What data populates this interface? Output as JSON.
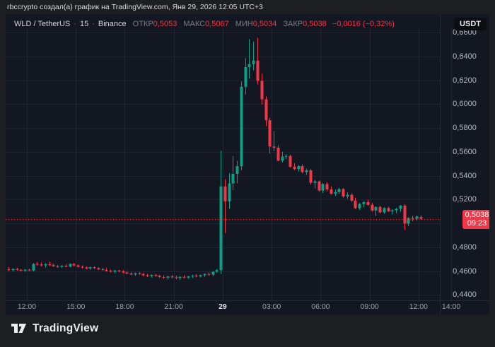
{
  "page": {
    "attribution": "rbccrypto создал(а) график на TradingView.com, Янв 29, 2026 12:05 UTC+3"
  },
  "chart": {
    "legend": {
      "symbol": "WLD / TetherUS",
      "separator": "·",
      "interval": "15",
      "exchange": "Binance",
      "open_label": "ОТКР",
      "open": "0,5053",
      "high_label": "МАКС",
      "high": "0,5067",
      "low_label": "МИН",
      "low": "0,5034",
      "close_label": "ЗАКР",
      "close": "0,5038",
      "change": "−0,0016 (−0,32%)"
    },
    "currency_badge": "USDT",
    "price_badge": {
      "price": "0,5038",
      "countdown": "09:23"
    },
    "colors": {
      "up": "#0f9d84",
      "down": "#f23645",
      "bg": "#131722",
      "grid": "#1e2431",
      "axis_border": "#252a39",
      "axis_text": "#b6bac3"
    }
  },
  "footer": {
    "brand": "TradingView"
  },
  "chart_data": {
    "type": "candlestick",
    "symbol": "WLD / TetherUS",
    "exchange": "Binance",
    "interval_minutes": 15,
    "quote_currency": "USDT",
    "last_candle": {
      "open": 0.5053,
      "high": 0.5067,
      "low": 0.5034,
      "close": 0.5038,
      "change": -0.0016,
      "change_pct": -0.32
    },
    "current_price": {
      "value": 0.5038,
      "label": "0,5038",
      "countdown": "09:23"
    },
    "price_axis": {
      "visible_min": 0.4355,
      "visible_max": 0.6605,
      "grid_step": 0.02,
      "ticks": [
        {
          "label": "0,6600",
          "value": 0.66
        },
        {
          "label": "0,6400",
          "value": 0.64
        },
        {
          "label": "0,6200",
          "value": 0.62
        },
        {
          "label": "0,6000",
          "value": 0.6
        },
        {
          "label": "0,5800",
          "value": 0.58
        },
        {
          "label": "0,5600",
          "value": 0.56
        },
        {
          "label": "0,5400",
          "value": 0.54
        },
        {
          "label": "0,5200",
          "value": 0.52
        },
        {
          "label": "0,4800",
          "value": 0.48
        },
        {
          "label": "0,4600",
          "value": 0.46
        },
        {
          "label": "0,4400",
          "value": 0.44
        }
      ]
    },
    "time_axis": {
      "ticks": [
        {
          "label": "12:00",
          "pos": 4.5
        },
        {
          "label": "15:00",
          "pos": 16.5
        },
        {
          "label": "18:00",
          "pos": 28.5
        },
        {
          "label": "21:00",
          "pos": 40.5
        },
        {
          "label": "29",
          "pos": 52.5,
          "bold": true
        },
        {
          "label": "03:00",
          "pos": 64.5
        },
        {
          "label": "06:00",
          "pos": 76.5
        },
        {
          "label": "09:00",
          "pos": 88.5
        },
        {
          "label": "12:00",
          "pos": 100.5
        },
        {
          "label": "14:00",
          "pos": 108.5
        }
      ]
    },
    "candles": [
      [
        0.4615,
        0.4635,
        0.46,
        0.4608
      ],
      [
        0.4608,
        0.4622,
        0.4596,
        0.4618
      ],
      [
        0.4618,
        0.4628,
        0.4605,
        0.461
      ],
      [
        0.461,
        0.4618,
        0.4598,
        0.4603
      ],
      [
        0.4603,
        0.4615,
        0.4595,
        0.4612
      ],
      [
        0.4612,
        0.462,
        0.46,
        0.4605
      ],
      [
        0.4605,
        0.4668,
        0.4596,
        0.466
      ],
      [
        0.466,
        0.4678,
        0.4645,
        0.4655
      ],
      [
        0.4655,
        0.467,
        0.4638,
        0.4648
      ],
      [
        0.4648,
        0.4665,
        0.463,
        0.4658
      ],
      [
        0.4658,
        0.468,
        0.4642,
        0.465
      ],
      [
        0.465,
        0.4662,
        0.4635,
        0.4641
      ],
      [
        0.4641,
        0.4652,
        0.4628,
        0.4636
      ],
      [
        0.4636,
        0.465,
        0.4625,
        0.4645
      ],
      [
        0.4645,
        0.4658,
        0.4632,
        0.4638
      ],
      [
        0.4638,
        0.4666,
        0.463,
        0.466
      ],
      [
        0.466,
        0.4668,
        0.464,
        0.4648
      ],
      [
        0.4648,
        0.4655,
        0.463,
        0.4636
      ],
      [
        0.4636,
        0.4648,
        0.4622,
        0.463
      ],
      [
        0.463,
        0.464,
        0.4615,
        0.4622
      ],
      [
        0.4622,
        0.4638,
        0.461,
        0.4632
      ],
      [
        0.4632,
        0.464,
        0.4618,
        0.4625
      ],
      [
        0.4625,
        0.4632,
        0.4608,
        0.4615
      ],
      [
        0.4615,
        0.4628,
        0.4602,
        0.461
      ],
      [
        0.461,
        0.4622,
        0.4595,
        0.4602
      ],
      [
        0.4602,
        0.4615,
        0.4588,
        0.4595
      ],
      [
        0.4595,
        0.461,
        0.4582,
        0.4605
      ],
      [
        0.4605,
        0.4612,
        0.459,
        0.4598
      ],
      [
        0.4598,
        0.4608,
        0.458,
        0.4588
      ],
      [
        0.4588,
        0.46,
        0.4572,
        0.458
      ],
      [
        0.458,
        0.4592,
        0.4565,
        0.4572
      ],
      [
        0.4572,
        0.4588,
        0.456,
        0.4582
      ],
      [
        0.4582,
        0.4592,
        0.457,
        0.4576
      ],
      [
        0.4576,
        0.4585,
        0.4558,
        0.4565
      ],
      [
        0.4565,
        0.4578,
        0.455,
        0.4558
      ],
      [
        0.4558,
        0.4572,
        0.4545,
        0.4568
      ],
      [
        0.4568,
        0.4578,
        0.4552,
        0.456
      ],
      [
        0.456,
        0.457,
        0.4542,
        0.455
      ],
      [
        0.455,
        0.4565,
        0.4535,
        0.4545
      ],
      [
        0.4545,
        0.456,
        0.453,
        0.4555
      ],
      [
        0.4555,
        0.4568,
        0.454,
        0.4548
      ],
      [
        0.4548,
        0.4562,
        0.4532,
        0.4542
      ],
      [
        0.4542,
        0.4558,
        0.4528,
        0.4552
      ],
      [
        0.4552,
        0.4565,
        0.4538,
        0.4546
      ],
      [
        0.4546,
        0.456,
        0.4535,
        0.4555
      ],
      [
        0.4555,
        0.457,
        0.4542,
        0.4562
      ],
      [
        0.4562,
        0.4575,
        0.4548,
        0.4556
      ],
      [
        0.4556,
        0.4572,
        0.4545,
        0.4566
      ],
      [
        0.4566,
        0.4582,
        0.4552,
        0.4576
      ],
      [
        0.4576,
        0.459,
        0.456,
        0.457
      ],
      [
        0.457,
        0.46,
        0.4558,
        0.4595
      ],
      [
        0.4595,
        0.4618,
        0.4585,
        0.4608
      ],
      [
        0.4608,
        0.561,
        0.4575,
        0.531
      ],
      [
        0.531,
        0.537,
        0.492,
        0.5185
      ],
      [
        0.5185,
        0.542,
        0.5125,
        0.5335
      ],
      [
        0.5335,
        0.5565,
        0.528,
        0.5415
      ],
      [
        0.5415,
        0.5525,
        0.5335,
        0.548
      ],
      [
        0.548,
        0.619,
        0.5445,
        0.6145
      ],
      [
        0.6145,
        0.6385,
        0.608,
        0.631
      ],
      [
        0.631,
        0.6545,
        0.6215,
        0.6335
      ],
      [
        0.6335,
        0.6525,
        0.6285,
        0.6365
      ],
      [
        0.6365,
        0.6555,
        0.6165,
        0.6195
      ],
      [
        0.6195,
        0.6255,
        0.5995,
        0.604
      ],
      [
        0.604,
        0.6065,
        0.5815,
        0.5865
      ],
      [
        0.5865,
        0.5885,
        0.5585,
        0.5645
      ],
      [
        0.5645,
        0.5775,
        0.5605,
        0.5635
      ],
      [
        0.5635,
        0.5655,
        0.552,
        0.5525
      ],
      [
        0.5525,
        0.56,
        0.551,
        0.556
      ],
      [
        0.556,
        0.558,
        0.554,
        0.5565
      ],
      [
        0.5565,
        0.5575,
        0.5468,
        0.5475
      ],
      [
        0.5475,
        0.5505,
        0.5448,
        0.5455
      ],
      [
        0.5455,
        0.549,
        0.5435,
        0.548
      ],
      [
        0.548,
        0.5495,
        0.542,
        0.543
      ],
      [
        0.543,
        0.546,
        0.5405,
        0.5445
      ],
      [
        0.5445,
        0.5455,
        0.5325,
        0.534
      ],
      [
        0.534,
        0.5365,
        0.529,
        0.5352
      ],
      [
        0.5352,
        0.536,
        0.5265,
        0.5275
      ],
      [
        0.5275,
        0.534,
        0.5255,
        0.533
      ],
      [
        0.533,
        0.5345,
        0.527,
        0.5285
      ],
      [
        0.5285,
        0.531,
        0.524,
        0.5248
      ],
      [
        0.5248,
        0.5285,
        0.523,
        0.5262
      ],
      [
        0.5262,
        0.53,
        0.5245,
        0.5288
      ],
      [
        0.5288,
        0.5295,
        0.5215,
        0.5225
      ],
      [
        0.5225,
        0.526,
        0.5205,
        0.524
      ],
      [
        0.524,
        0.5252,
        0.518,
        0.519
      ],
      [
        0.519,
        0.5215,
        0.512,
        0.5128
      ],
      [
        0.5128,
        0.5172,
        0.5112,
        0.5162
      ],
      [
        0.5162,
        0.5185,
        0.5135,
        0.5178
      ],
      [
        0.5178,
        0.5198,
        0.5148,
        0.5155
      ],
      [
        0.5155,
        0.5172,
        0.5098,
        0.5108
      ],
      [
        0.5108,
        0.5142,
        0.5062,
        0.5138
      ],
      [
        0.5138,
        0.5148,
        0.5085,
        0.5092
      ],
      [
        0.5092,
        0.5135,
        0.508,
        0.5128
      ],
      [
        0.5128,
        0.514,
        0.5095,
        0.5102
      ],
      [
        0.5102,
        0.5118,
        0.5075,
        0.511
      ],
      [
        0.511,
        0.513,
        0.5085,
        0.5122
      ],
      [
        0.5122,
        0.5155,
        0.5098,
        0.5148
      ],
      [
        0.5148,
        0.516,
        0.4945,
        0.4998
      ],
      [
        0.4998,
        0.5052,
        0.4975,
        0.5045
      ],
      [
        0.5045,
        0.5062,
        0.5018,
        0.5038
      ],
      [
        0.5038,
        0.5065,
        0.5022,
        0.5058
      ],
      [
        0.5053,
        0.5067,
        0.5034,
        0.5038
      ]
    ]
  }
}
